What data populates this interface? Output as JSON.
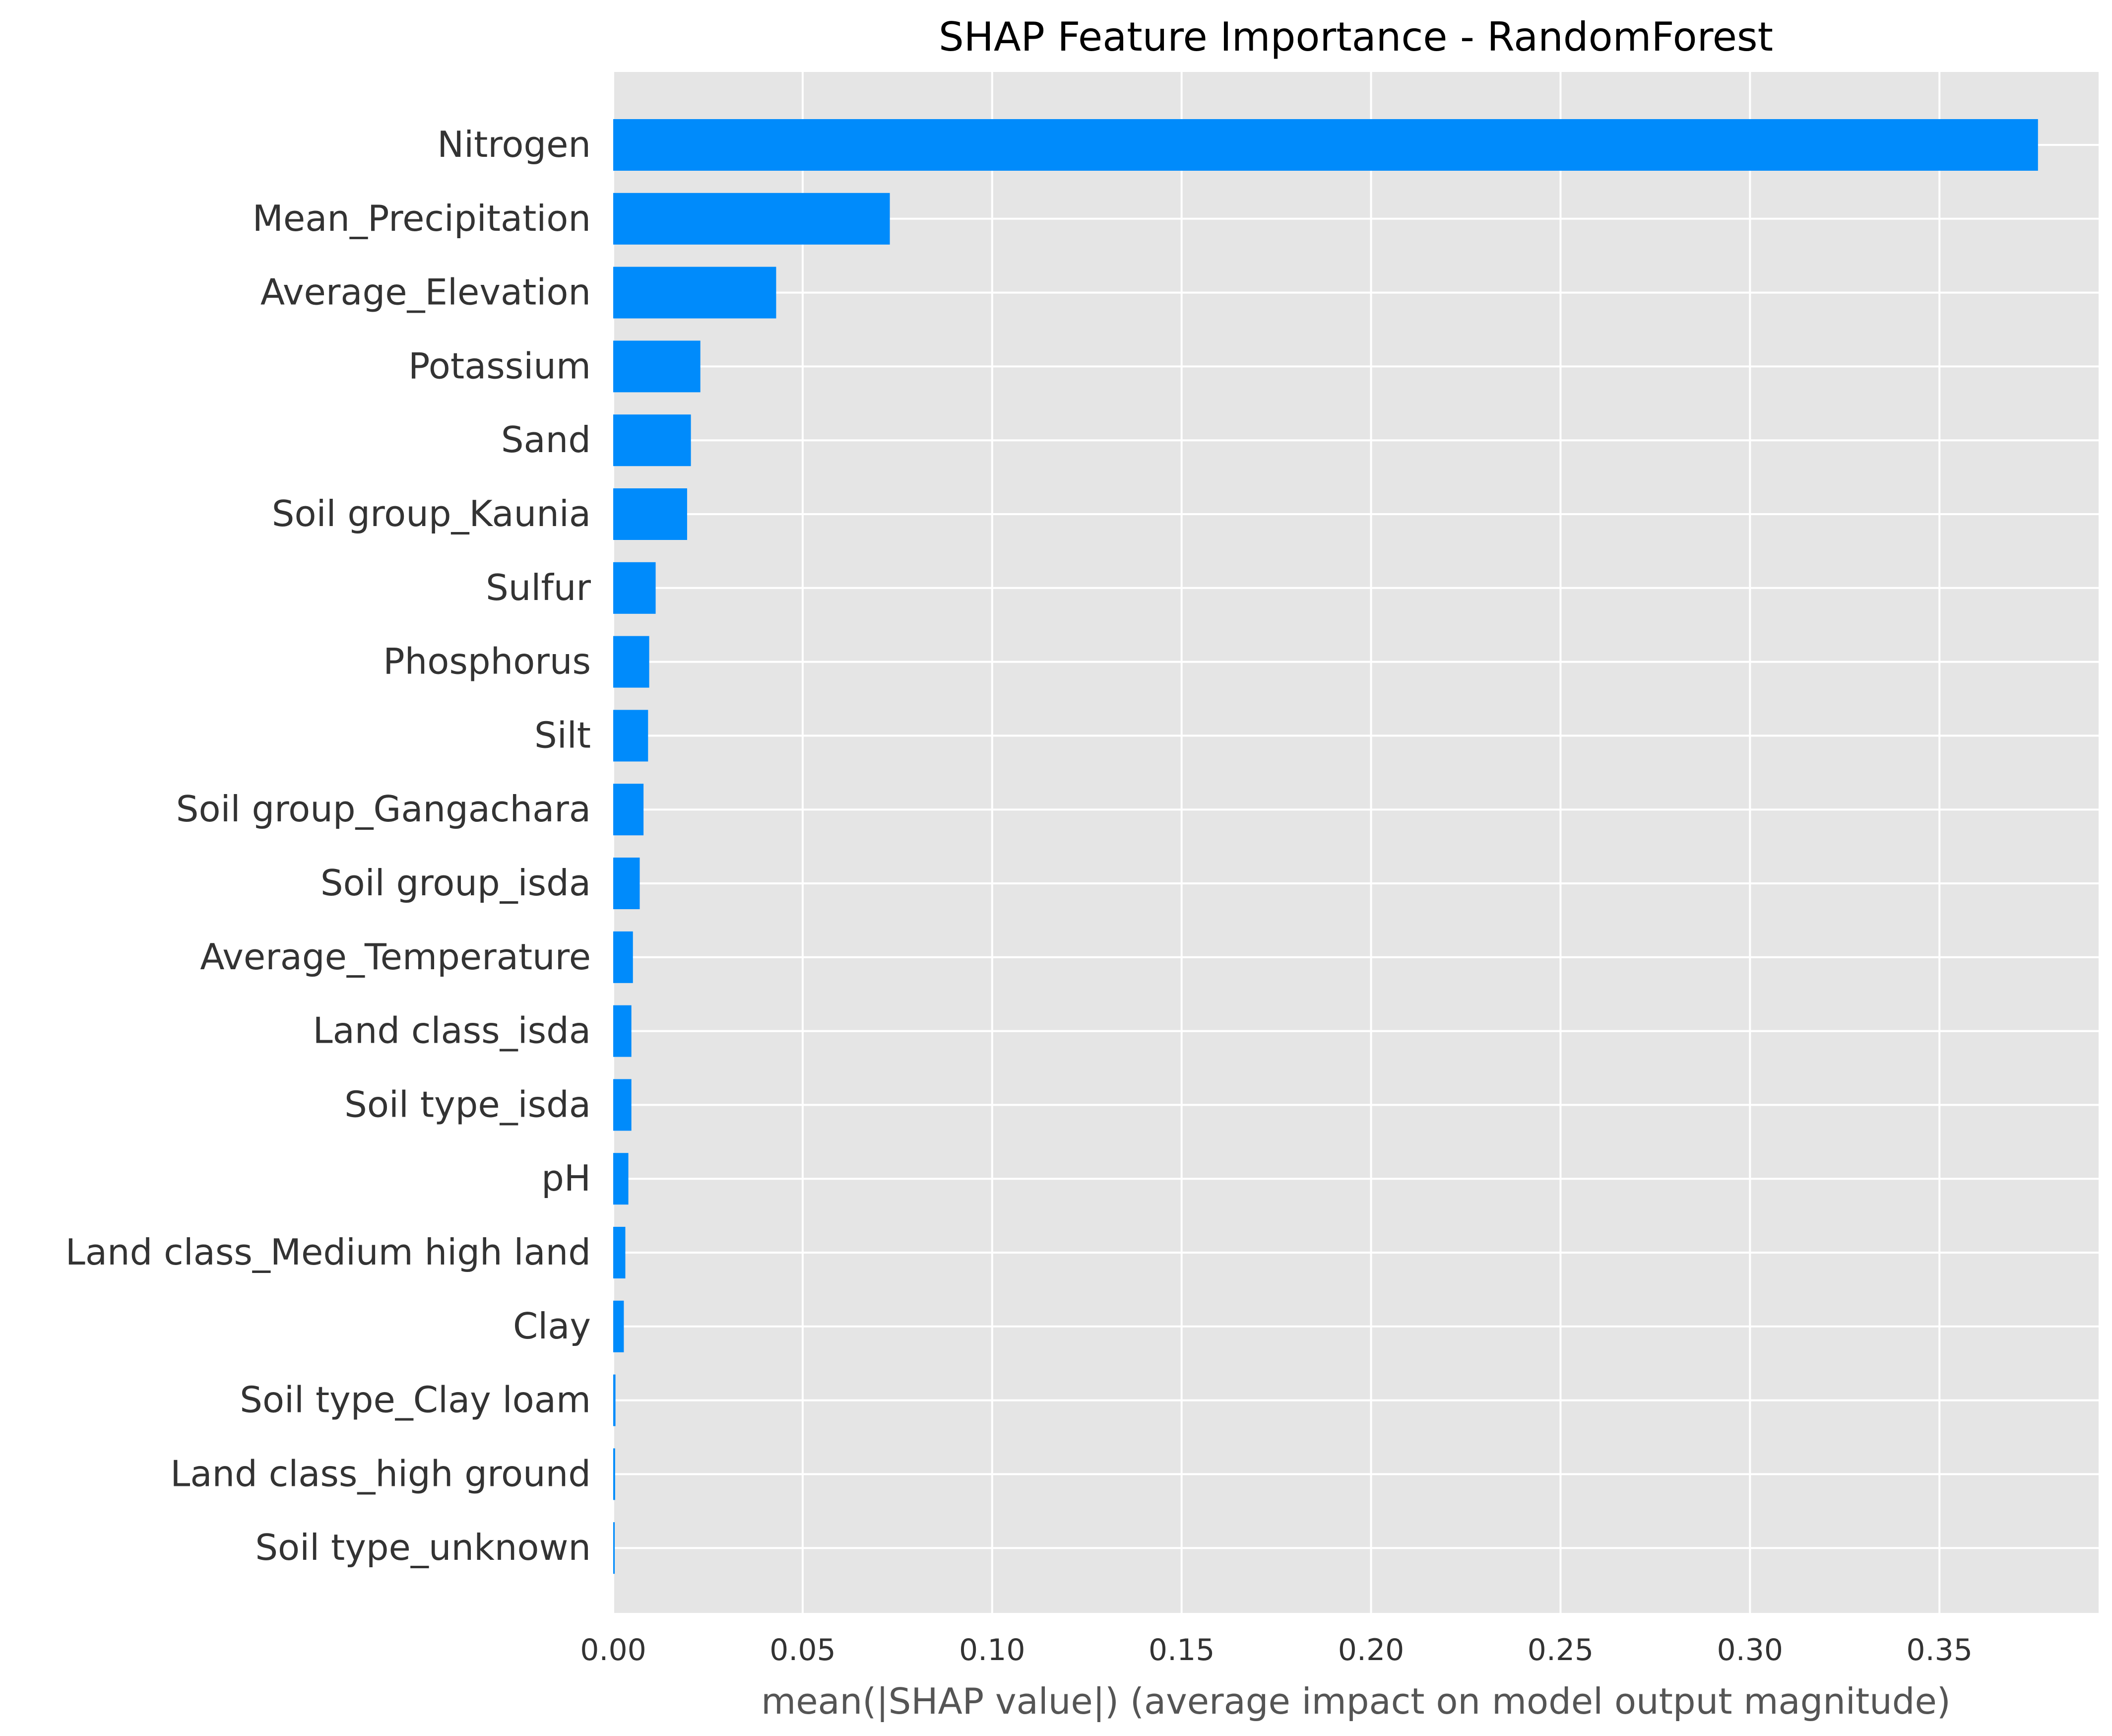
{
  "chart_data": {
    "type": "bar",
    "orientation": "horizontal",
    "title": "SHAP Feature Importance - RandomForest",
    "xlabel": "mean(|SHAP value|) (average impact on model output magnitude)",
    "ylabel": "",
    "xlim": [
      0,
      0.392
    ],
    "x_ticks": [
      "0.00",
      "0.05",
      "0.10",
      "0.15",
      "0.20",
      "0.25",
      "0.30",
      "0.35"
    ],
    "x_tick_values": [
      0,
      0.05,
      0.1,
      0.15,
      0.2,
      0.25,
      0.3,
      0.35
    ],
    "grid": true,
    "categories": [
      "Nitrogen",
      "Mean_Precipitation",
      "Average_Elevation",
      "Potassium",
      "Sand",
      "Soil group_Kaunia",
      "Sulfur",
      "Phosphorus",
      "Silt",
      "Soil group_Gangachara",
      "Soil group_isda",
      "Average_Temperature",
      "Land class_isda",
      "Soil type_isda",
      "pH",
      "Land class_Medium high land",
      "Clay",
      "Soil type_Clay loam",
      "Land class_high ground",
      "Soil type_unknown"
    ],
    "values": [
      0.376,
      0.073,
      0.043,
      0.023,
      0.0205,
      0.0195,
      0.0112,
      0.0095,
      0.0092,
      0.008,
      0.007,
      0.0052,
      0.0048,
      0.0048,
      0.004,
      0.0032,
      0.0028,
      0.0006,
      0.0005,
      0.0004
    ],
    "bar_color": "#008bfb",
    "background_color": "#e5e5e5",
    "grid_color": "#ffffff"
  }
}
